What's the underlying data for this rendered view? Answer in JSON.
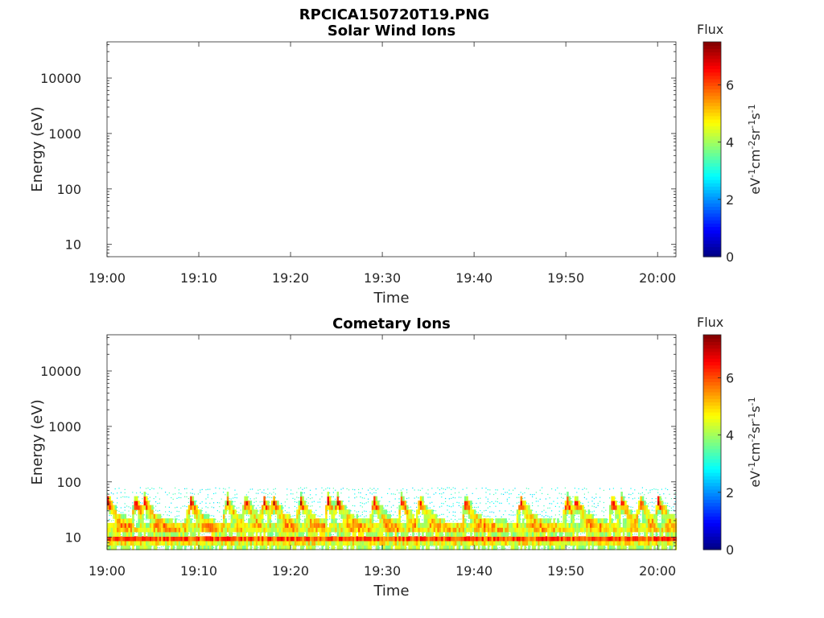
{
  "figure": {
    "title": "RPCICA150720T19.PNG"
  },
  "colorbar": {
    "label": "Flux",
    "units": "eV-1cm-2sr-1s-1",
    "range": [
      0,
      7.5
    ],
    "ticks": [
      "0",
      "2",
      "4",
      "6"
    ],
    "colormap": "jet"
  },
  "chart_data": [
    {
      "type": "heatmap",
      "title": "Solar Wind Ions",
      "xlabel": "Time",
      "ylabel": "Energy (eV)",
      "yscale": "log",
      "ylim": [
        6,
        45000
      ],
      "xlim": [
        "19:00",
        "20:02"
      ],
      "xticks": [
        "19:00",
        "19:10",
        "19:20",
        "19:30",
        "19:40",
        "19:50",
        "20:00"
      ],
      "yticks": [
        "10",
        "100",
        "1000",
        "10000"
      ],
      "series": []
    },
    {
      "type": "heatmap",
      "title": "Cometary Ions",
      "xlabel": "Time",
      "ylabel": "Energy (eV)",
      "yscale": "log",
      "ylim": [
        6,
        45000
      ],
      "xlim": [
        "19:00",
        "20:02"
      ],
      "xticks": [
        "19:00",
        "19:10",
        "19:20",
        "19:30",
        "19:40",
        "19:50",
        "20:00"
      ],
      "yticks": [
        "10",
        "100",
        "1000",
        "10000"
      ],
      "energy_range_eV": [
        6,
        80
      ],
      "peak_times": [
        "19:00",
        "19:03",
        "19:04",
        "19:09",
        "19:13",
        "19:15",
        "19:17",
        "19:18",
        "19:21",
        "19:24",
        "19:25",
        "19:29",
        "19:32",
        "19:34",
        "19:39",
        "19:45",
        "19:50",
        "19:51",
        "19:55",
        "19:56",
        "19:58",
        "20:00"
      ],
      "max_flux": 7.5
    }
  ]
}
